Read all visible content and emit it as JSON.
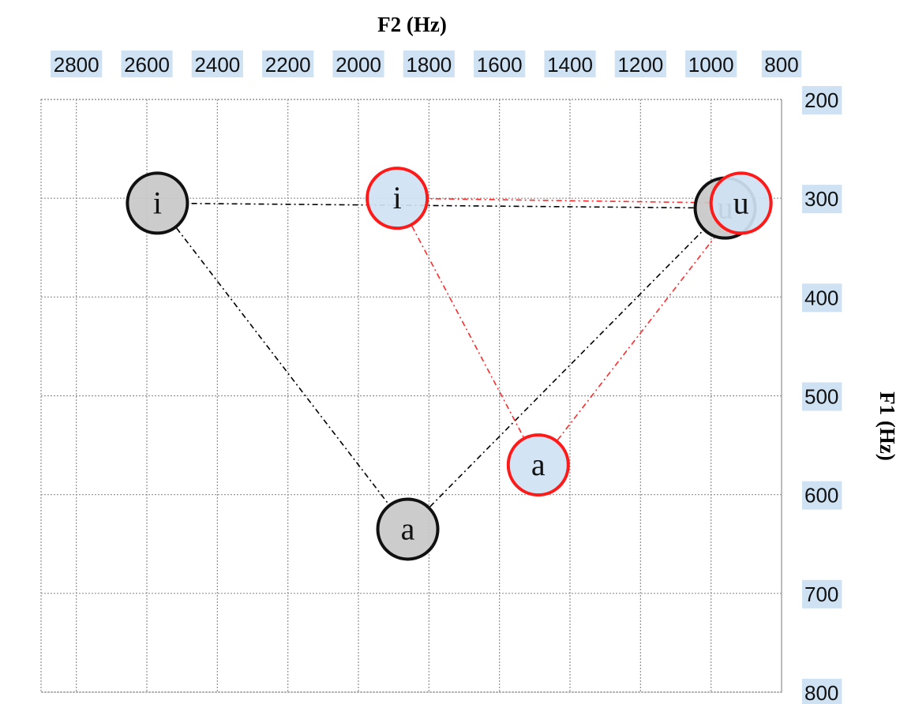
{
  "chart_data": {
    "type": "scatter",
    "title": "",
    "xlabel": "F2 (Hz)",
    "ylabel": "F1 (Hz)",
    "xlim": [
      2900,
      800
    ],
    "ylim": [
      200,
      800
    ],
    "x_ticks": [
      "2800",
      "2600",
      "2400",
      "2200",
      "2000",
      "1800",
      "1600",
      "1400",
      "1200",
      "1000",
      "800"
    ],
    "y_ticks": [
      "200",
      "300",
      "400",
      "500",
      "600",
      "700",
      "800"
    ],
    "x_axis_position": "top",
    "y_axis_position": "right",
    "grid": true,
    "tick_label_background": "#cfe2f3",
    "series": [
      {
        "color": "#000000",
        "marker_fill": "#c8c8c8",
        "marker_edge": "#111111",
        "line_style": "dash-dot",
        "points": [
          {
            "label": "i",
            "x": 2570,
            "y": 305
          },
          {
            "label": "a",
            "x": 1860,
            "y": 635
          },
          {
            "label": "u",
            "x": 960,
            "y": 310
          }
        ]
      },
      {
        "color": "#ff2a2a",
        "marker_fill": "#cfe2f3",
        "marker_edge": "#ff1a1a",
        "line_style": "dash-dot",
        "points": [
          {
            "label": "i",
            "x": 1890,
            "y": 300
          },
          {
            "label": "a",
            "x": 1490,
            "y": 570
          },
          {
            "label": "u",
            "x": 915,
            "y": 305
          }
        ]
      }
    ]
  }
}
